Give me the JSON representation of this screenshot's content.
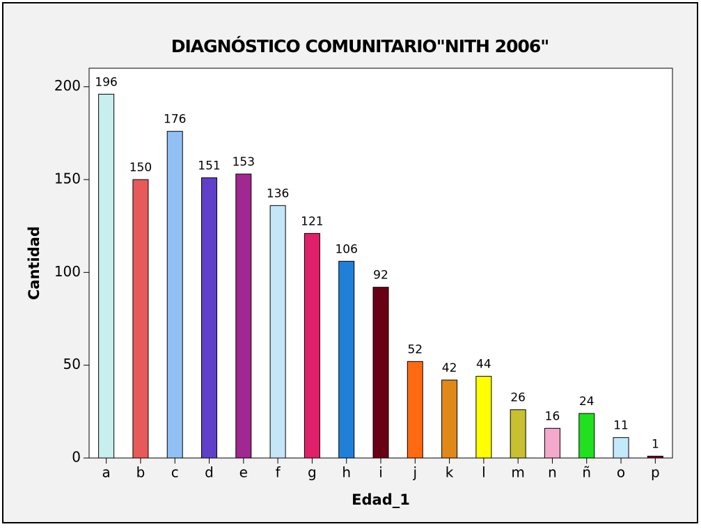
{
  "chart_data": {
    "type": "bar",
    "title": "DIAGNÓSTICO COMUNITARIO\"NITH 2006\"",
    "x_label": "Edad_1",
    "y_label": "Cantidad",
    "categories": [
      "a",
      "b",
      "c",
      "d",
      "e",
      "f",
      "g",
      "h",
      "i",
      "j",
      "k",
      "l",
      "m",
      "n",
      "ñ",
      "o",
      "p"
    ],
    "values": [
      196,
      150,
      176,
      151,
      153,
      136,
      121,
      106,
      92,
      52,
      42,
      44,
      26,
      16,
      24,
      11,
      1
    ],
    "colors": [
      "#c8eeee",
      "#e85a5a",
      "#90c0f4",
      "#6040c8",
      "#a02890",
      "#c4e6f6",
      "#e0206a",
      "#2080d8",
      "#6a0014",
      "#ff6a10",
      "#e08818",
      "#ffff00",
      "#c8c030",
      "#f4a8cc",
      "#20e020",
      "#c4e8fc",
      "#800020"
    ],
    "ylim": [
      0,
      210
    ],
    "yticks": [
      0,
      50,
      100,
      150,
      200
    ]
  }
}
